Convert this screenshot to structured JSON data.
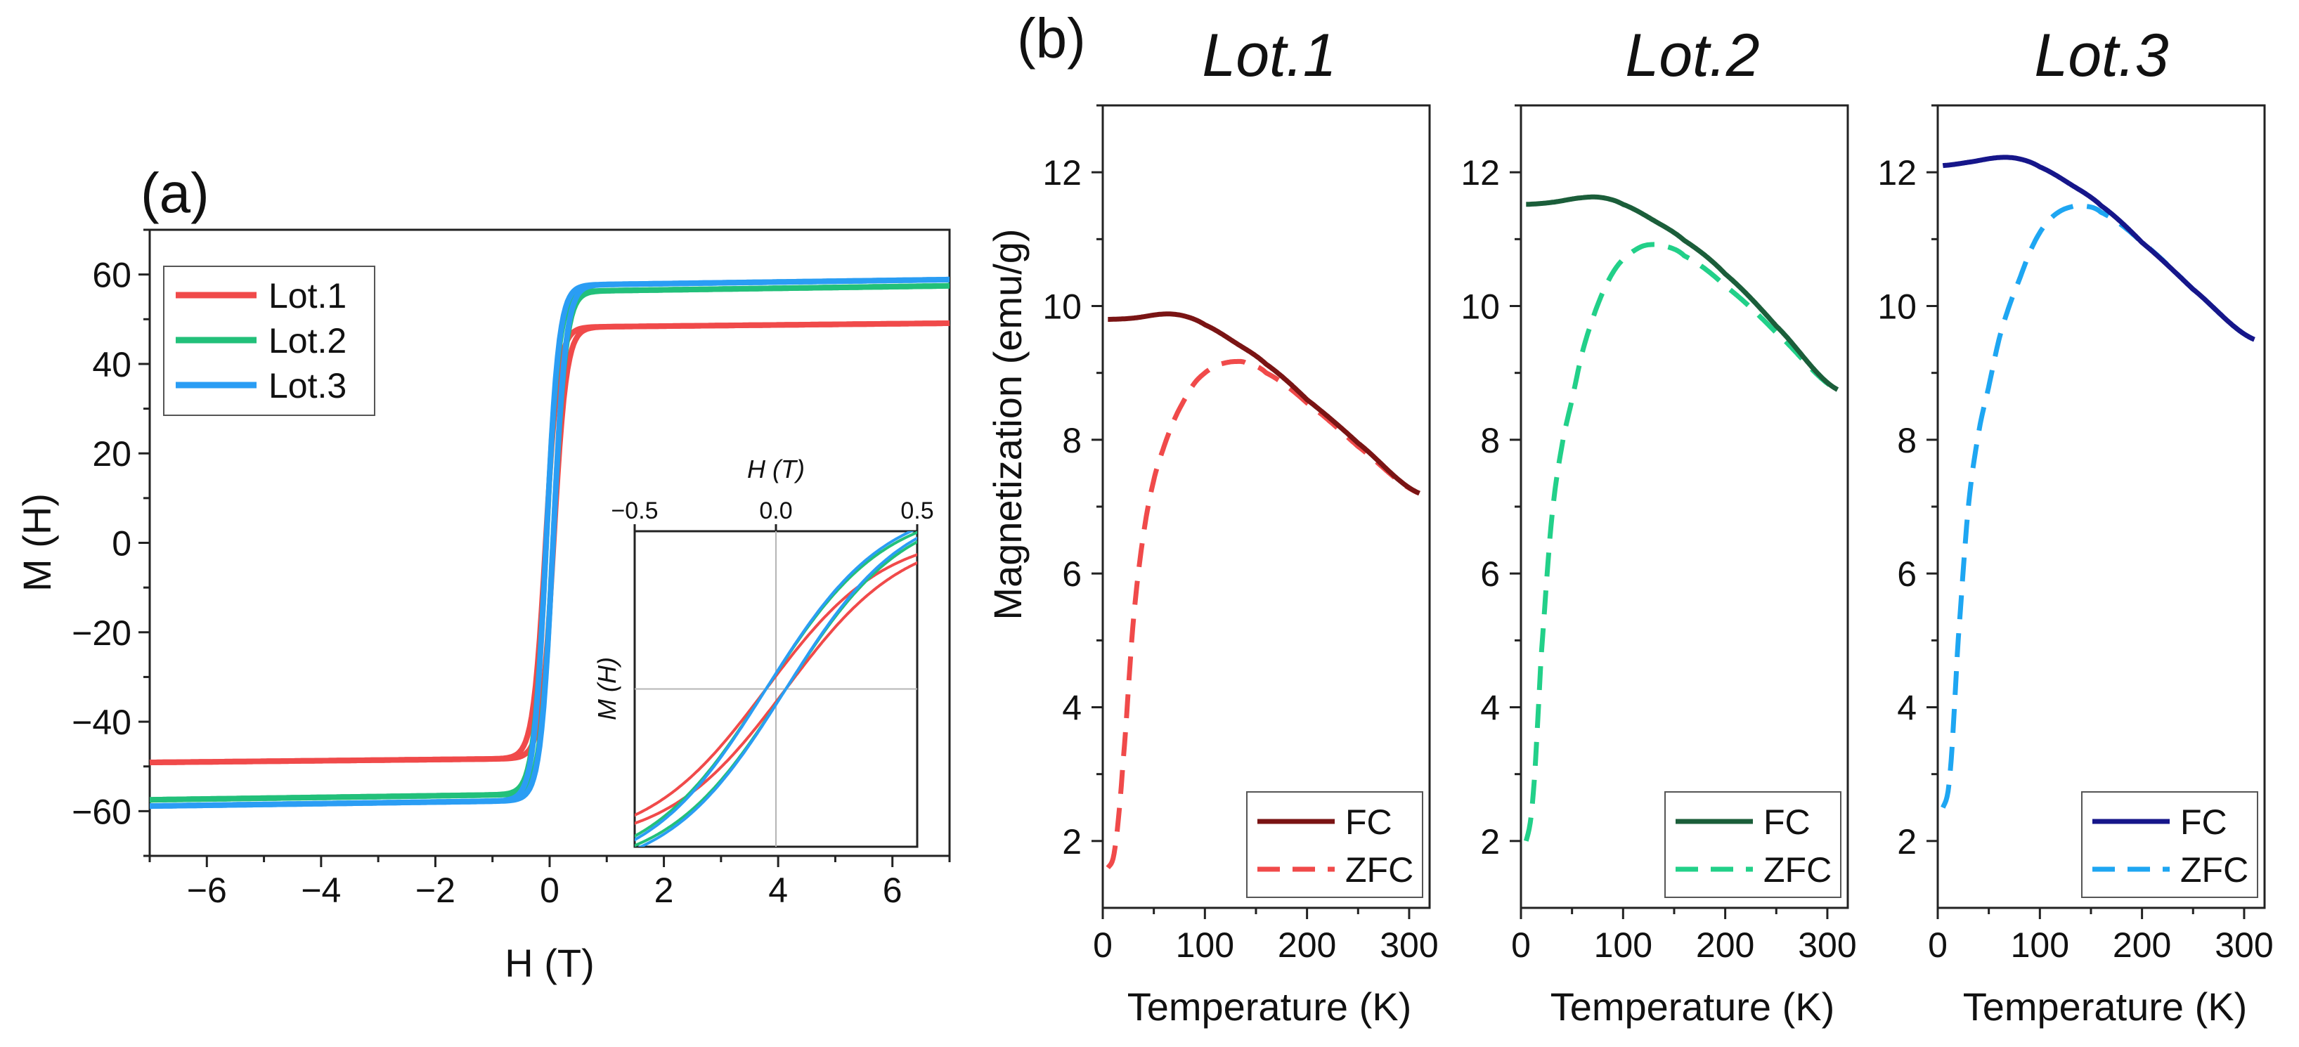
{
  "chart_data": [
    {
      "panel": "(a)",
      "type": "line",
      "title": "",
      "xlabel": "H (T)",
      "ylabel": "M (H)",
      "xlim": [
        -7,
        7
      ],
      "ylim": [
        -70,
        70
      ],
      "xticks": [
        "-6",
        "-4",
        "-2",
        "0",
        "2",
        "4",
        "6"
      ],
      "yticks": [
        "-60",
        "-40",
        "-20",
        "0",
        "20",
        "40",
        "60"
      ],
      "legend": "top-left",
      "series": [
        {
          "name": "Lot.1",
          "color": "#f04a4a",
          "ms": 48.2,
          "slope": 0.13,
          "hc": 0.07
        },
        {
          "name": "Lot.2",
          "color": "#22c07a",
          "ms": 56.2,
          "slope": 0.18,
          "hc": 0.06
        },
        {
          "name": "Lot.3",
          "color": "#2a9df4",
          "ms": 57.6,
          "slope": 0.18,
          "hc": 0.06
        }
      ],
      "inset": {
        "xlabel": "H (T)",
        "ylabel": "M (H)",
        "xlim": [
          -0.5,
          0.5
        ],
        "ylim": [
          -30,
          30
        ],
        "xticks": [
          "-0.5",
          "0.0",
          "0.5"
        ]
      }
    },
    {
      "panel": "(b)",
      "type": "line",
      "ylabel": "Magnetization (emu/g)",
      "xlim": [
        0,
        320
      ],
      "ylim": [
        1,
        13
      ],
      "yticks": [
        "2",
        "4",
        "6",
        "8",
        "10",
        "12"
      ],
      "xticks": [
        "0",
        "100",
        "200",
        "300"
      ],
      "subplots": [
        {
          "title": "Lot.1",
          "xlabel": "Temperature (K)",
          "legend": "bottom-right",
          "fc": {
            "name": "FC",
            "color": "#7a1414",
            "x": [
              5,
              30,
              60,
              80,
              100,
              130,
              160,
              200,
              250,
              310
            ],
            "y": [
              9.8,
              9.82,
              9.88,
              9.85,
              9.72,
              9.45,
              9.13,
              8.6,
              7.95,
              7.2
            ]
          },
          "zfc": {
            "name": "ZFC",
            "color": "#f04a4a",
            "x": [
              5,
              12,
              20,
              30,
              40,
              50,
              60,
              70,
              80,
              90,
              100,
              110,
              120,
              130,
              140,
              160,
              200,
              250,
              310
            ],
            "y": [
              1.6,
              1.9,
              3.2,
              5.3,
              6.6,
              7.4,
              7.9,
              8.3,
              8.6,
              8.85,
              9.0,
              9.1,
              9.15,
              9.17,
              9.15,
              9.0,
              8.55,
              7.9,
              7.2
            ]
          }
        },
        {
          "title": "Lot.2",
          "xlabel": "Temperature (K)",
          "legend": "bottom-right",
          "fc": {
            "name": "FC",
            "color": "#1b5e3a",
            "x": [
              5,
              30,
              60,
              80,
              100,
              130,
              160,
              200,
              250,
              310
            ],
            "y": [
              11.52,
              11.55,
              11.62,
              11.62,
              11.52,
              11.28,
              10.98,
              10.48,
              9.7,
              8.75
            ]
          },
          "zfc": {
            "name": "ZFC",
            "color": "#22d089",
            "x": [
              5,
              12,
              20,
              30,
              40,
              50,
              60,
              70,
              80,
              90,
              100,
              110,
              120,
              130,
              140,
              160,
              200,
              250,
              310
            ],
            "y": [
              2.0,
              2.7,
              4.8,
              6.8,
              7.9,
              8.6,
              9.3,
              9.8,
              10.2,
              10.5,
              10.7,
              10.82,
              10.9,
              10.92,
              10.9,
              10.75,
              10.3,
              9.6,
              8.75
            ]
          }
        },
        {
          "title": "Lot.3",
          "xlabel": "Temperature (K)",
          "legend": "bottom-right",
          "fc": {
            "name": "FC",
            "color": "#16168a",
            "x": [
              5,
              30,
              60,
              80,
              100,
              130,
              160,
              200,
              250,
              310
            ],
            "y": [
              12.1,
              12.15,
              12.22,
              12.2,
              12.08,
              11.82,
              11.5,
              10.95,
              10.25,
              9.5
            ]
          },
          "zfc": {
            "name": "ZFC",
            "color": "#1ea6f2",
            "x": [
              5,
              12,
              20,
              30,
              40,
              50,
              60,
              70,
              80,
              90,
              100,
              110,
              120,
              130,
              140,
              160,
              200,
              250,
              310
            ],
            "y": [
              2.5,
              3.0,
              5.0,
              7.0,
              8.1,
              8.8,
              9.5,
              10.0,
              10.4,
              10.8,
              11.1,
              11.3,
              11.42,
              11.48,
              11.5,
              11.4,
              10.95,
              10.25,
              9.5
            ]
          }
        }
      ]
    }
  ]
}
